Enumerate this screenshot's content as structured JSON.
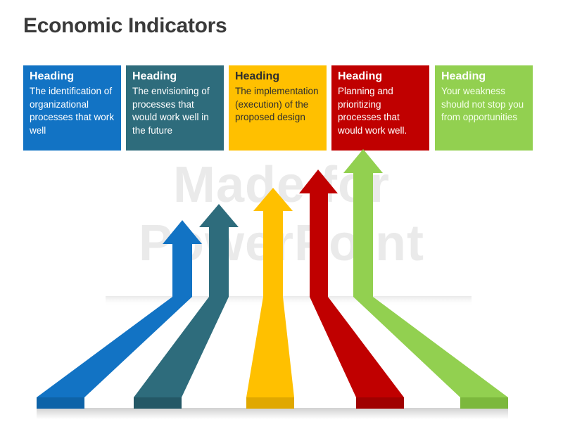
{
  "slide": {
    "title": "Economic Indicators",
    "watermark_line1": "Made for",
    "watermark_line2": "PowerPoint"
  },
  "boxes": [
    {
      "heading": "Heading",
      "text": "The identification of organizational processes that work well",
      "color": "#1273c4"
    },
    {
      "heading": "Heading",
      "text": "The envisioning of processes that would work well in the future",
      "color": "#2e6c7c"
    },
    {
      "heading": "Heading",
      "text": "The implementation (execution) of the proposed design",
      "color": "#ffc000"
    },
    {
      "heading": "Heading",
      "text": "Planning and prioritizing processes that would work well.",
      "color": "#c00000"
    },
    {
      "heading": "Heading",
      "text": "Your weakness should not stop you from opportunities",
      "color": "#92d050"
    }
  ]
}
